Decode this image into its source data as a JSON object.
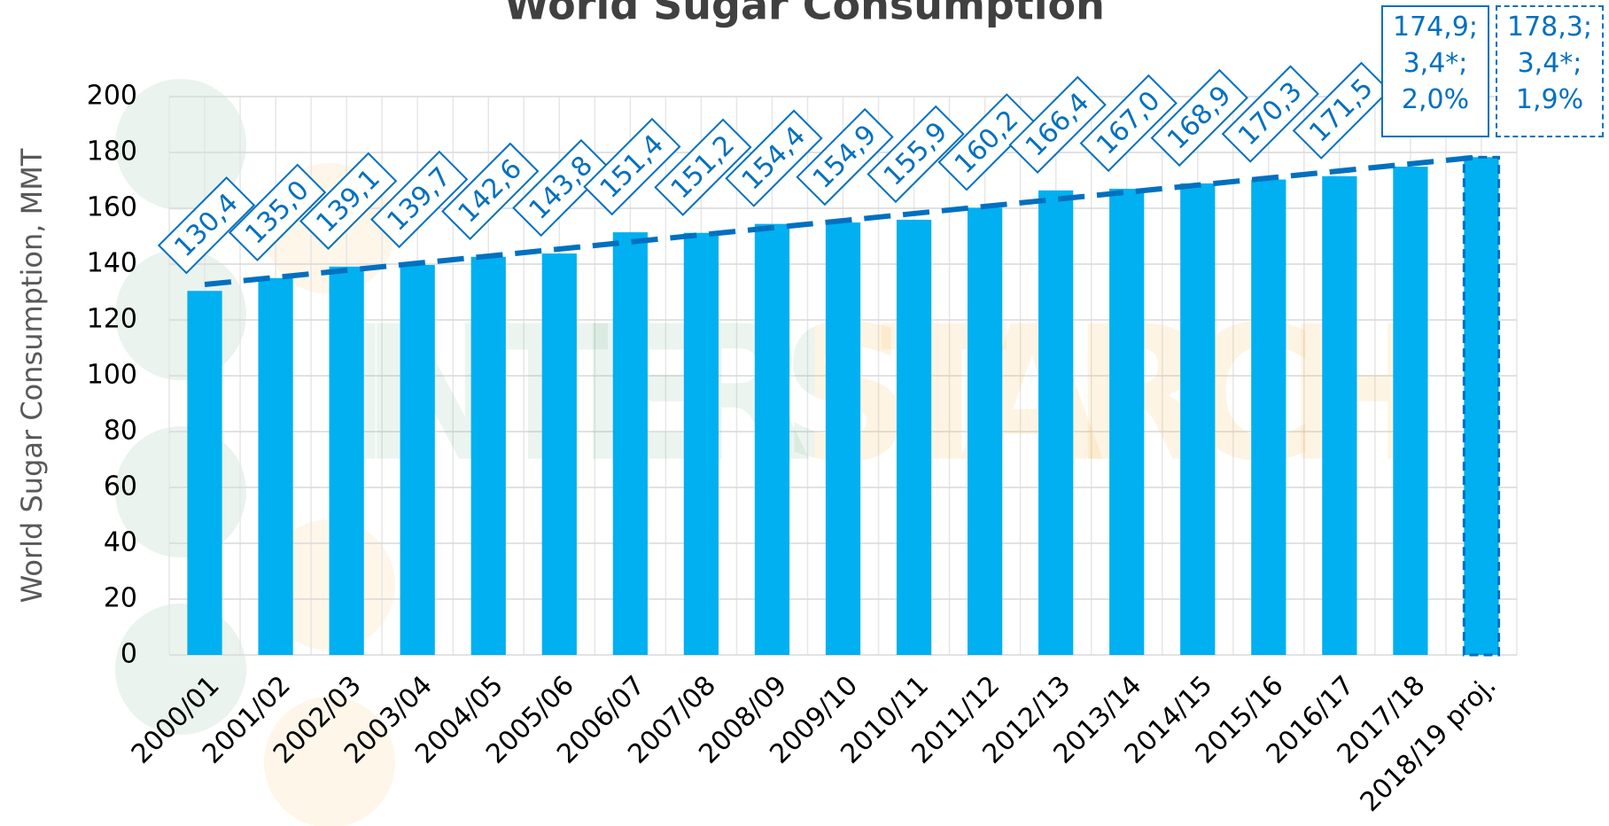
{
  "chart_data": {
    "type": "bar",
    "title": "World Sugar Consumption",
    "y_label": "World Sugar Consumption, MMT",
    "watermark": "INTERSTARCH",
    "categories": [
      "2000/01",
      "2001/02",
      "2002/03",
      "2003/04",
      "2004/05",
      "2005/06",
      "2006/07",
      "2007/08",
      "2008/09",
      "2009/10",
      "2010/11",
      "2011/12",
      "2012/13",
      "2013/14",
      "2014/15",
      "2015/16",
      "2016/17",
      "2017/18",
      "2018/19 proj."
    ],
    "values": [
      130.4,
      135.0,
      139.1,
      139.7,
      142.6,
      143.8,
      151.4,
      151.2,
      154.4,
      154.9,
      155.9,
      160.2,
      166.4,
      167.0,
      168.9,
      170.3,
      171.5,
      174.9,
      178.3
    ],
    "value_labels": [
      "130,4",
      "135,0",
      "139,1",
      "139,7",
      "142,6",
      "143,8",
      "151,4",
      "151,2",
      "154,4",
      "154,9",
      "155,9",
      "160,2",
      "166,4",
      "167,0",
      "168,9",
      "170,3",
      "171,5",
      "174,9;\n3,4*;\n2,0%",
      "178,3;\n3,4*;\n1,9%"
    ],
    "color": "#00b0f0",
    "trendline": true,
    "trend_color": "#0070c0",
    "ylim": [
      0,
      200
    ],
    "yticks": [
      0,
      20,
      40,
      60,
      80,
      100,
      120,
      140,
      160,
      180,
      200
    ],
    "grid": true
  }
}
